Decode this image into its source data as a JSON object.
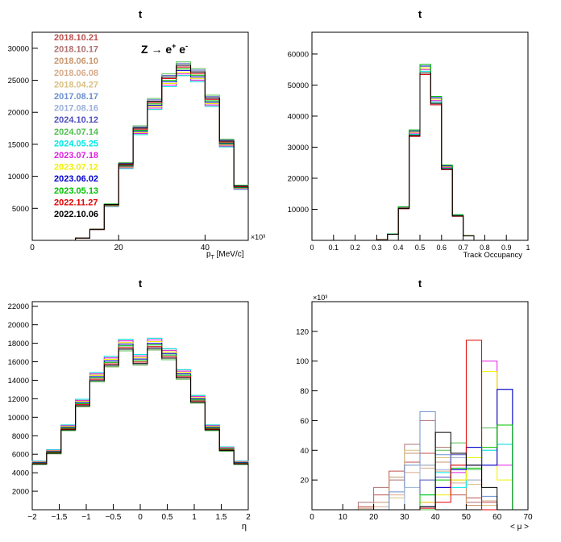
{
  "chart_data": [
    {
      "type": "histogram",
      "title": "t",
      "xlabel": "p_T [MeV/c]",
      "xlabel_parts": {
        "base": "p",
        "sub": "T",
        "rest": " [MeV/c]"
      },
      "x_multiplier": "×10³",
      "xlim": [
        0,
        50
      ],
      "ylim": [
        0,
        32500
      ],
      "xticks": [
        0,
        20,
        40
      ],
      "yticks": [
        5000,
        10000,
        15000,
        20000,
        25000,
        30000
      ],
      "bin_edges": [
        0,
        4,
        8,
        12,
        16,
        20,
        24,
        28,
        32,
        36,
        40,
        44,
        48,
        50
      ],
      "annotation": "Z → e⁺ e⁻",
      "annotation_parts": {
        "pre": "Z → e",
        "sup1": "+",
        "mid": " e",
        "sup2": "-"
      },
      "reference_values": [
        0,
        0,
        0,
        350,
        1700,
        5500,
        11700,
        17200,
        21300,
        25000,
        26800,
        25800,
        21800,
        15200,
        8300
      ],
      "legend": [
        {
          "label": "2018.10.21",
          "color": "#c05050"
        },
        {
          "label": "2018.10.17",
          "color": "#b07070"
        },
        {
          "label": "2018.06.10",
          "color": "#c8966e"
        },
        {
          "label": "2018.06.08",
          "color": "#d8aa8a"
        },
        {
          "label": "2018.04.27",
          "color": "#d8c080"
        },
        {
          "label": "2017.08.17",
          "color": "#6a8fcf"
        },
        {
          "label": "2017.08.16",
          "color": "#9bb0d8"
        },
        {
          "label": "2024.10.12",
          "color": "#5050c0"
        },
        {
          "label": "2024.07.14",
          "color": "#50c050"
        },
        {
          "label": "2024.05.25",
          "color": "#00e8e8"
        },
        {
          "label": "2023.07.18",
          "color": "#e020e0"
        },
        {
          "label": "2023.07.12",
          "color": "#f0f000"
        },
        {
          "label": "2023.06.02",
          "color": "#0000d0"
        },
        {
          "label": "2023.05.13",
          "color": "#00c000"
        },
        {
          "label": "2022.11.27",
          "color": "#e00000"
        },
        {
          "label": "2022.10.06",
          "color": "#000000"
        }
      ]
    },
    {
      "type": "histogram",
      "title": "t",
      "xlabel": "Track Occupancy",
      "xlim": [
        0,
        1
      ],
      "ylim": [
        0,
        67000
      ],
      "xticks": [
        0,
        0.1,
        0.2,
        0.3,
        0.4,
        0.5,
        0.6,
        0.7,
        0.8,
        0.9,
        1
      ],
      "xtick_labels": [
        "0",
        "0.1",
        "0.2",
        "0.3",
        "0.4",
        "0.5",
        "0.6",
        "0.7",
        "0.8",
        "0.9",
        "1"
      ],
      "yticks": [
        10000,
        20000,
        30000,
        40000,
        50000,
        60000
      ],
      "bin_width": 0.05,
      "reference_values": [
        0,
        0,
        0,
        0,
        0,
        0,
        200,
        2000,
        10500,
        34500,
        55000,
        45000,
        23500,
        8000,
        1500,
        0,
        0,
        0,
        0,
        0
      ]
    },
    {
      "type": "histogram",
      "title": "t",
      "xlabel": "η",
      "xlim": [
        -2,
        2
      ],
      "ylim": [
        0,
        22500
      ],
      "xticks": [
        -2,
        -1.5,
        -1,
        -0.5,
        0,
        0.5,
        1,
        1.5,
        2
      ],
      "xtick_labels": [
        "−2",
        "−1.5",
        "−1",
        "−0.5",
        "0",
        "0.5",
        "1",
        "1.5",
        "2"
      ],
      "yticks": [
        2000,
        4000,
        6000,
        8000,
        10000,
        12000,
        14000,
        16000,
        18000,
        20000,
        22000
      ],
      "bin_width": 0.25,
      "reference_values": [
        5100,
        6300,
        8900,
        11600,
        14400,
        16100,
        17900,
        16300,
        18000,
        16900,
        14700,
        12000,
        8900,
        6600,
        5100
      ]
    },
    {
      "type": "histogram",
      "title": "t",
      "xlabel": "< μ >",
      "y_multiplier": "×10³",
      "xlim": [
        0,
        70
      ],
      "ylim": [
        0,
        140
      ],
      "xticks": [
        0,
        10,
        20,
        30,
        40,
        50,
        60,
        70
      ],
      "yticks": [
        20,
        40,
        60,
        80,
        100,
        120
      ],
      "bin_width": 5,
      "series_values": [
        [
          0,
          0,
          0,
          2,
          10,
          26,
          32,
          38,
          32,
          10,
          8,
          5,
          0,
          0
        ],
        [
          0,
          0,
          0,
          5,
          15,
          20,
          44,
          60,
          42,
          30,
          5,
          0,
          0,
          0
        ],
        [
          0,
          0,
          0,
          1,
          5,
          22,
          38,
          30,
          32,
          20,
          3,
          0,
          0,
          0
        ],
        [
          0,
          0,
          0,
          0,
          2,
          10,
          25,
          28,
          26,
          18,
          20,
          6,
          0,
          0
        ],
        [
          0,
          0,
          0,
          0,
          0,
          8,
          40,
          30,
          35,
          20,
          17,
          3,
          0,
          0
        ],
        [
          0,
          0,
          0,
          0,
          0,
          12,
          30,
          66,
          37,
          27,
          30,
          9,
          0,
          0
        ],
        [
          0,
          0,
          0,
          0,
          0,
          0,
          15,
          30,
          27,
          35,
          20,
          40,
          44,
          0
        ],
        [
          0,
          0,
          0,
          0,
          0,
          0,
          0,
          20,
          22,
          37,
          42,
          30,
          81,
          0
        ],
        [
          0,
          0,
          0,
          0,
          0,
          0,
          0,
          0,
          40,
          45,
          27,
          55,
          57,
          0
        ],
        [
          0,
          0,
          0,
          0,
          0,
          0,
          0,
          10,
          25,
          15,
          30,
          40,
          44,
          0
        ],
        [
          0,
          0,
          0,
          0,
          0,
          0,
          0,
          5,
          15,
          25,
          30,
          100,
          30,
          0
        ],
        [
          0,
          0,
          0,
          0,
          0,
          0,
          0,
          5,
          10,
          20,
          35,
          93,
          20,
          0
        ],
        [
          0,
          0,
          0,
          0,
          0,
          0,
          0,
          2,
          15,
          27,
          42,
          30,
          81,
          0
        ],
        [
          0,
          0,
          0,
          0,
          0,
          0,
          0,
          10,
          20,
          28,
          28,
          42,
          57,
          0
        ],
        [
          0,
          0,
          0,
          0,
          0,
          0,
          0,
          1,
          5,
          30,
          114,
          0,
          0,
          0
        ],
        [
          0,
          0,
          0,
          0,
          0,
          0,
          0,
          2,
          52,
          38,
          30,
          15,
          0,
          0
        ]
      ]
    }
  ]
}
